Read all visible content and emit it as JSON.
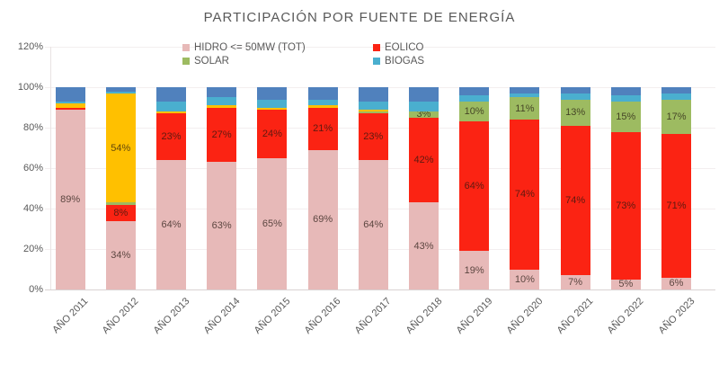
{
  "title": "PARTICIPACIÓN POR FUENTE DE ENERGÍA",
  "legend": {
    "items": [
      {
        "label": "HIDRO <= 50MW  (TOT)",
        "color": "#e7b9b8"
      },
      {
        "label": "EOLICO",
        "color": "#fb2313"
      },
      {
        "label": "SOLAR",
        "color": "#9dbb61"
      },
      {
        "label": "BIOGAS",
        "color": "#4aafcf"
      }
    ]
  },
  "y_axis": {
    "ticks": [
      "0%",
      "20%",
      "40%",
      "60%",
      "80%",
      "100%",
      "120%"
    ]
  },
  "chart_data": {
    "type": "bar",
    "stacked": true,
    "title": "PARTICIPACIÓN POR FUENTE DE ENERGÍA",
    "xlabel": "",
    "ylabel": "",
    "ylim": [
      0,
      120
    ],
    "grid": true,
    "legend_position": "top",
    "units": "percent",
    "categories": [
      "AÑO 2011",
      "AÑO 2012",
      "AÑO 2013",
      "AÑO 2014",
      "AÑO 2015",
      "AÑO 2016",
      "AÑO 2017",
      "AÑO 2018",
      "AÑO 2019",
      "AÑO 2020",
      "AÑO 2021",
      "AÑO 2022",
      "AÑO 2023"
    ],
    "series": [
      {
        "name": "HIDRO <= 50MW (TOT)",
        "color": "#e7b9b8",
        "values": [
          89,
          34,
          64,
          63,
          65,
          69,
          64,
          43,
          19,
          10,
          7,
          5,
          6
        ],
        "labels": [
          "89%",
          "34%",
          "64%",
          "63%",
          "65%",
          "69%",
          "64%",
          "43%",
          "19%",
          "10%",
          "7%",
          "5%",
          "6%"
        ]
      },
      {
        "name": "EOLICO",
        "color": "#fb2313",
        "values": [
          1,
          8,
          23,
          27,
          24,
          21,
          23,
          42,
          64,
          74,
          74,
          73,
          71
        ],
        "labels": [
          "",
          "8%",
          "23%",
          "27%",
          "24%",
          "21%",
          "23%",
          "42%",
          "64%",
          "74%",
          "74%",
          "73%",
          "71%"
        ]
      },
      {
        "name": "SOLAR",
        "color": "#9dbb61",
        "values": [
          0,
          1,
          0,
          0,
          0,
          0,
          1,
          3,
          10,
          11,
          13,
          15,
          17
        ],
        "labels": [
          "",
          "",
          "",
          "",
          "",
          "",
          "",
          "3%",
          "10%",
          "11%",
          "13%",
          "15%",
          "17%"
        ]
      },
      {
        "name": "",
        "color": "#ffc000",
        "values": [
          2,
          54,
          1,
          1,
          1,
          1,
          1,
          0,
          0,
          0,
          0,
          0,
          0
        ],
        "labels": [
          "",
          "54%",
          "",
          "",
          "",
          "",
          "",
          "",
          "",
          "",
          "",
          "",
          ""
        ]
      },
      {
        "name": "BIOGAS",
        "color": "#4aafcf",
        "values": [
          1,
          1,
          5,
          4,
          4,
          3,
          4,
          5,
          3,
          2,
          3,
          3,
          3
        ],
        "labels": [
          "",
          "",
          "",
          "",
          "",
          "",
          "",
          "",
          "",
          "",
          "",
          "",
          ""
        ]
      },
      {
        "name": "",
        "color": "#5081bd",
        "values": [
          7,
          2,
          7,
          5,
          6,
          6,
          7,
          7,
          4,
          3,
          3,
          4,
          3
        ],
        "labels": [
          "",
          "",
          "",
          "",
          "",
          "",
          "",
          "",
          "",
          "",
          "",
          "",
          ""
        ]
      }
    ]
  }
}
